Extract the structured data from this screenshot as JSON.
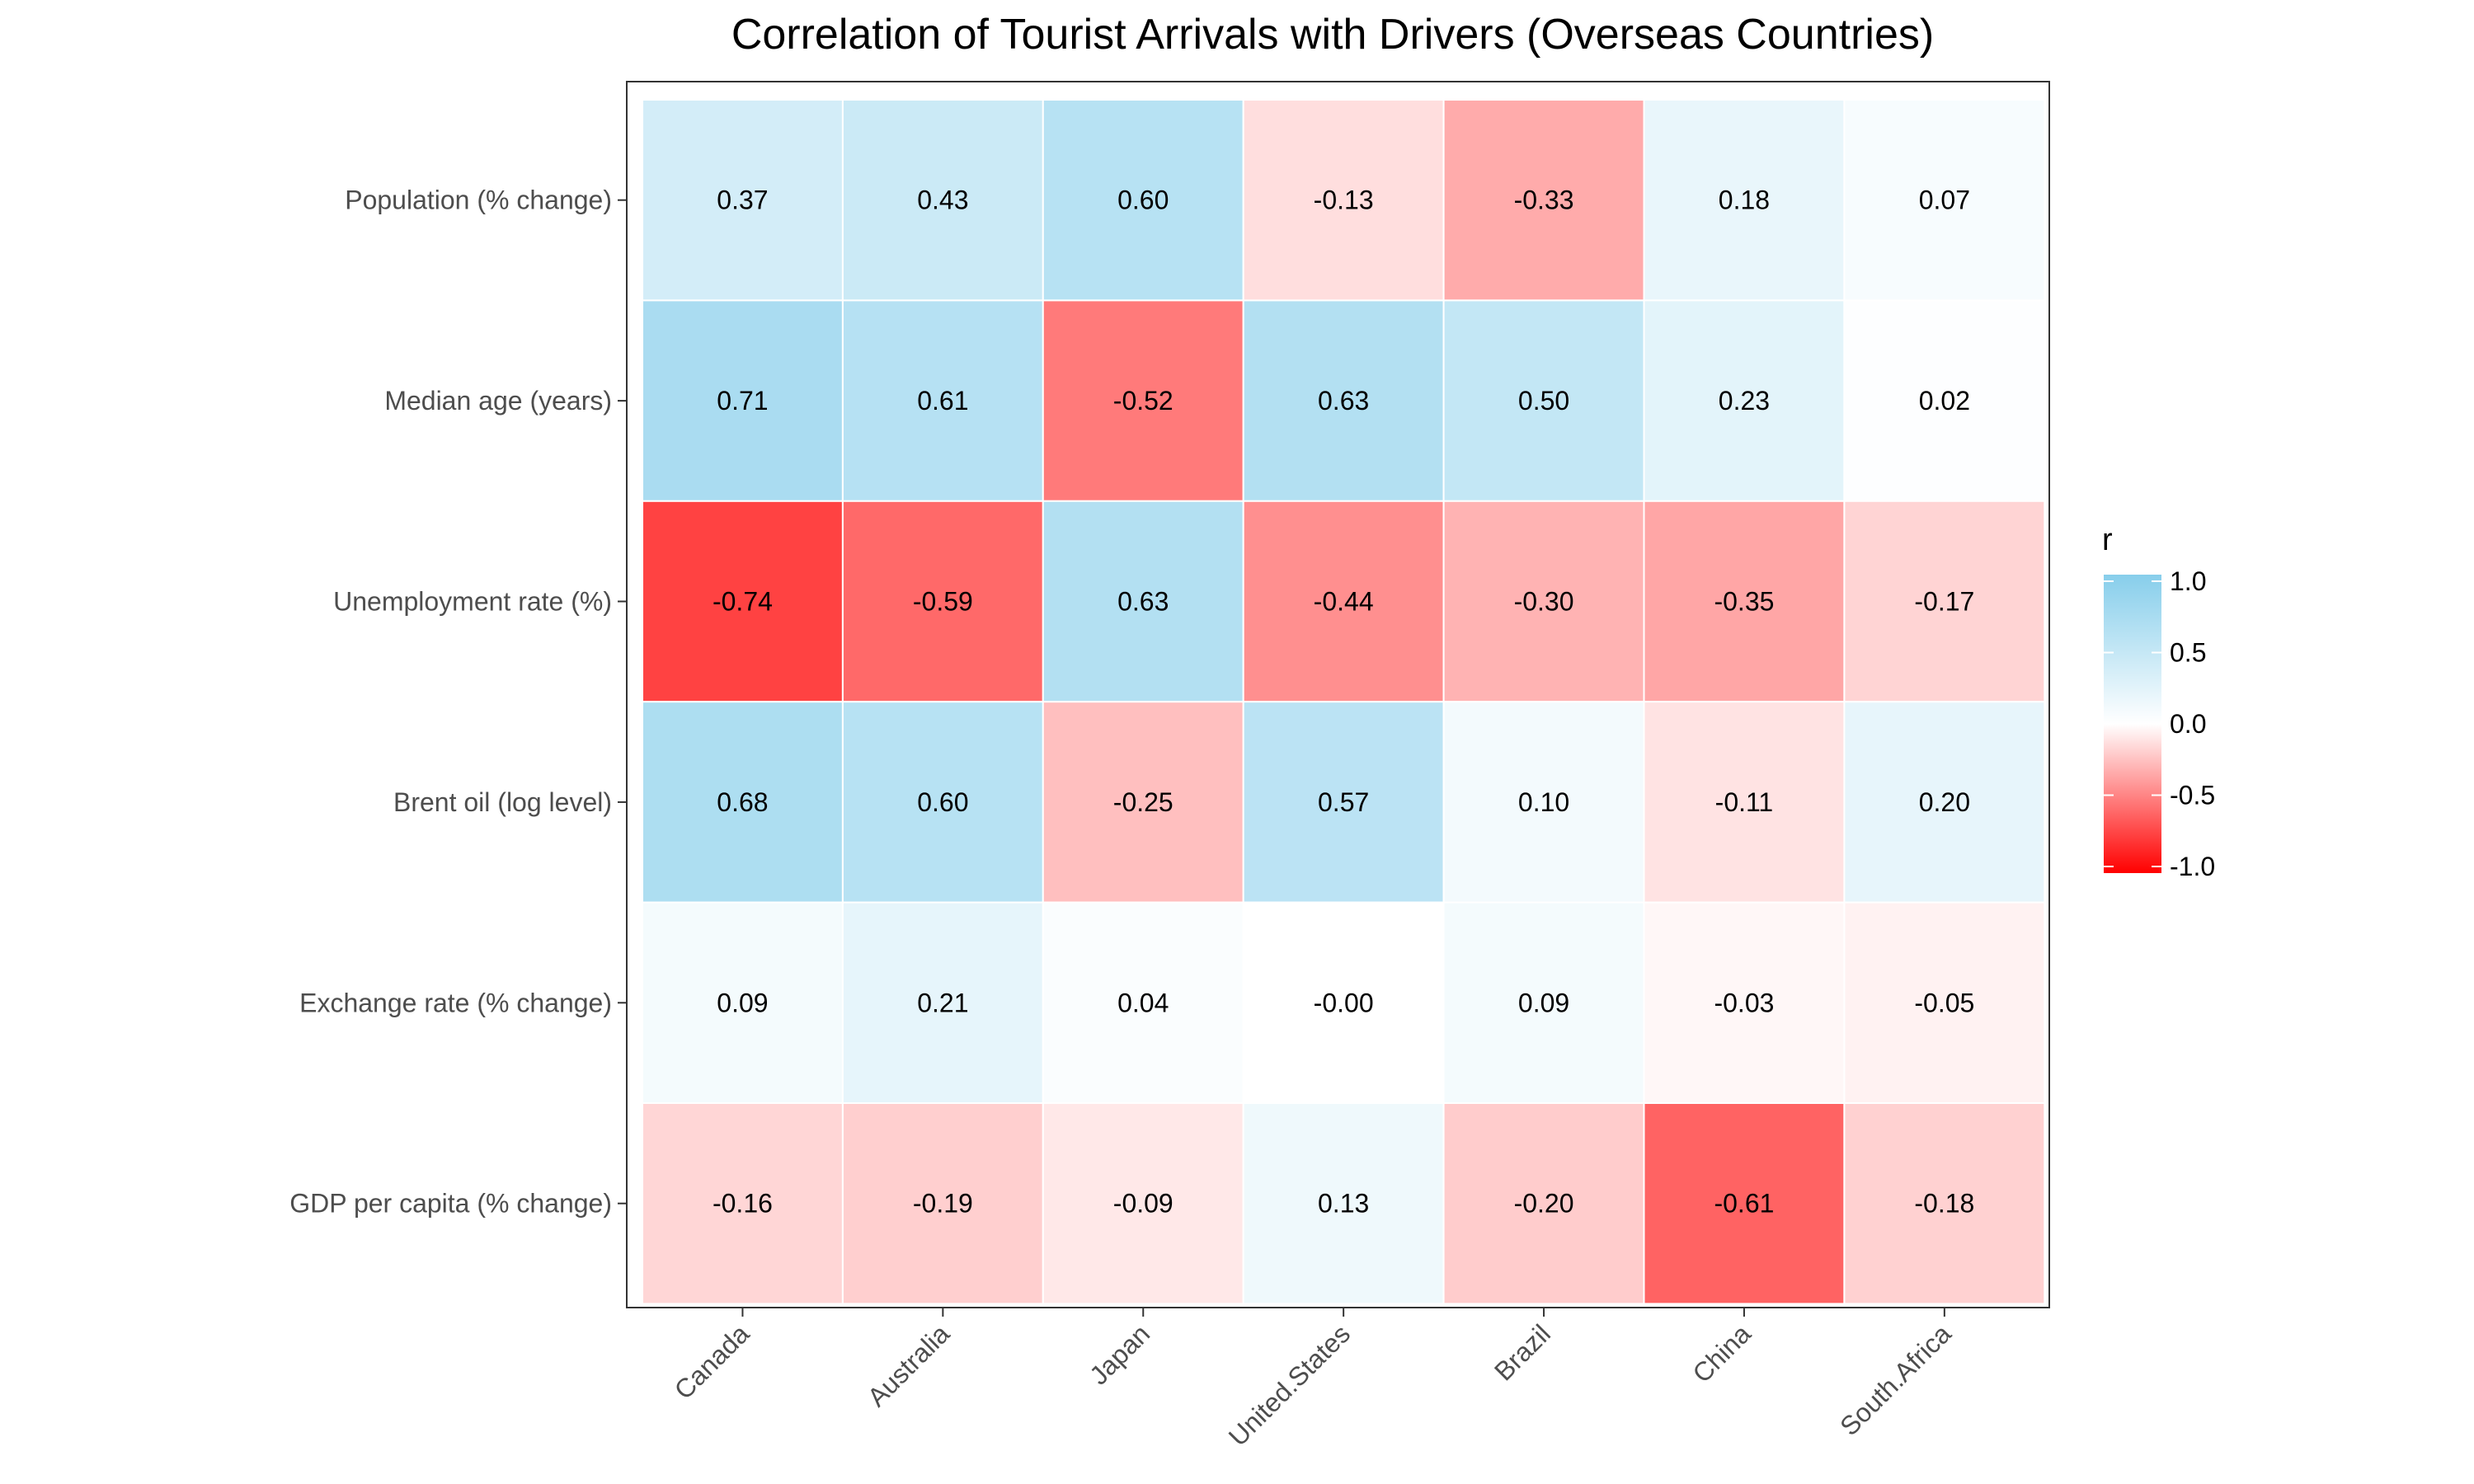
{
  "chart_data": {
    "type": "heatmap",
    "title": "Correlation of Tourist Arrivals with Drivers (Overseas Countries)",
    "xlabel": "",
    "ylabel": "",
    "columns": [
      "Canada",
      "Australia",
      "Japan",
      "United.States",
      "Brazil",
      "China",
      "South.Africa"
    ],
    "rows": [
      "Population (% change)",
      "Median age (years)",
      "Unemployment rate (%)",
      "Brent oil (log level)",
      "Exchange rate (% change)",
      "GDP per capita (% change)"
    ],
    "values": [
      [
        0.37,
        0.43,
        0.6,
        -0.13,
        -0.33,
        0.18,
        0.07
      ],
      [
        0.71,
        0.61,
        -0.52,
        0.63,
        0.5,
        0.23,
        0.02
      ],
      [
        -0.74,
        -0.59,
        0.63,
        -0.44,
        -0.3,
        -0.35,
        -0.17
      ],
      [
        0.68,
        0.6,
        -0.25,
        0.57,
        0.1,
        -0.11,
        0.2
      ],
      [
        0.09,
        0.21,
        0.04,
        -0.0,
        0.09,
        -0.03,
        -0.05
      ],
      [
        -0.16,
        -0.19,
        -0.09,
        0.13,
        -0.2,
        -0.61,
        -0.18
      ]
    ],
    "value_labels": [
      [
        "0.37",
        "0.43",
        "0.60",
        "-0.13",
        "-0.33",
        "0.18",
        "0.07"
      ],
      [
        "0.71",
        "0.61",
        "-0.52",
        "0.63",
        "0.50",
        "0.23",
        "0.02"
      ],
      [
        "-0.74",
        "-0.59",
        "0.63",
        "-0.44",
        "-0.30",
        "-0.35",
        "-0.17"
      ],
      [
        "0.68",
        "0.60",
        "-0.25",
        "0.57",
        "0.10",
        "-0.11",
        "0.20"
      ],
      [
        "0.09",
        "0.21",
        "0.04",
        "-0.00",
        "0.09",
        "-0.03",
        "-0.05"
      ],
      [
        "-0.16",
        "-0.19",
        "-0.09",
        "0.13",
        "-0.20",
        "-0.61",
        "-0.18"
      ]
    ],
    "legend": {
      "title": "r",
      "placement": "right",
      "range": [
        -1,
        1
      ],
      "ticks": [
        1.0,
        0.5,
        0.0,
        -0.5,
        -1.0
      ],
      "tick_labels": [
        "1.0",
        "0.5",
        "0.0",
        "-0.5",
        "-1.0"
      ]
    },
    "colors": {
      "low": "#ff0000",
      "mid": "#ffffff",
      "high": "#87ceeb",
      "panel_border": "#333333",
      "tick": "#333333"
    }
  }
}
